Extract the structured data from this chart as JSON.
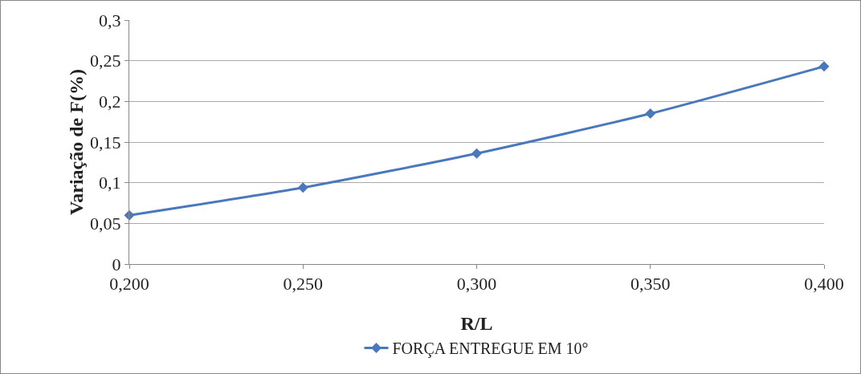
{
  "chart_data": {
    "type": "line",
    "xlabel": "R/L",
    "ylabel": "Variação de F(%)",
    "categories": [
      "0,200",
      "0,250",
      "0,300",
      "0,350",
      "0,400"
    ],
    "series": [
      {
        "name": "FORÇA ENTREGUE EM 10°",
        "color": "#4a78bd",
        "values": [
          0.06,
          0.094,
          0.136,
          0.185,
          0.243
        ]
      }
    ],
    "ylim": [
      0,
      0.3
    ],
    "yticks": [
      0,
      {
        "value": 0.05,
        "label": "0,05"
      },
      {
        "value": 0.1,
        "label": "0,1"
      },
      {
        "value": 0.15,
        "label": "0,15"
      },
      {
        "value": 0.2,
        "label": "0,2"
      },
      {
        "value": 0.25,
        "label": "0,25"
      },
      {
        "value": 0.3,
        "label": "0,3"
      }
    ],
    "grid": "y",
    "legend": "bottom",
    "marker": "diamond",
    "line_style": "solid"
  }
}
